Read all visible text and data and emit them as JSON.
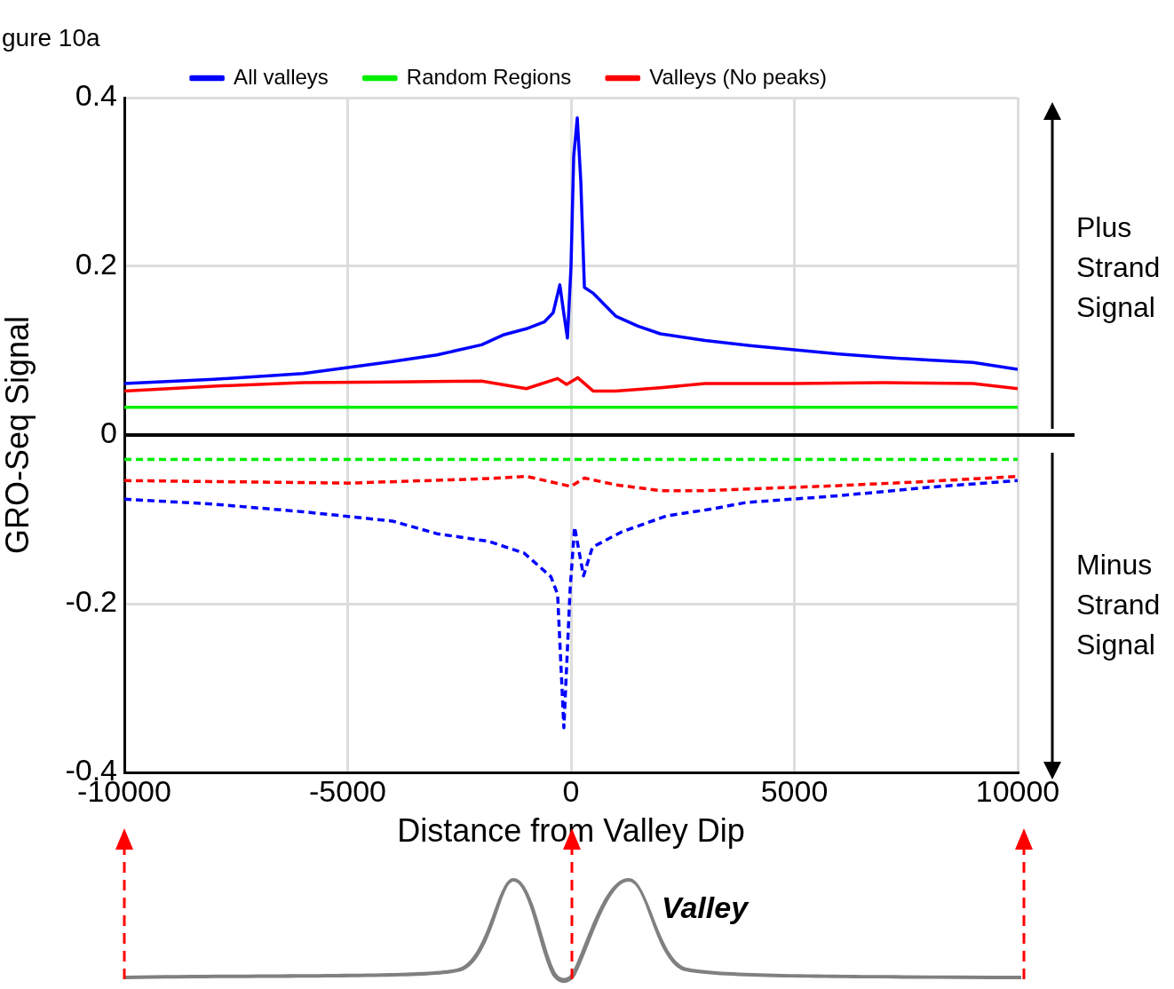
{
  "chart_data": {
    "type": "line",
    "xlabel": "Distance from Valley Dip",
    "ylabel": "GRO-Seq Signal",
    "xlim": [
      -10000,
      10000
    ],
    "xticks": [
      -10000,
      -5000,
      0,
      5000,
      10000
    ],
    "ylim": [
      -0.4,
      0.4
    ],
    "yticks": [
      -0.4,
      -0.2,
      0,
      0.2,
      0.4
    ],
    "grid": true,
    "legend": "top",
    "marker": "none",
    "ref_lines": [
      {
        "axis": "y",
        "value": 0,
        "color": "#000000"
      }
    ],
    "annotations": [
      "gure 10a",
      "Plus Strand Signal",
      "Minus Strand Signal",
      "Valley"
    ],
    "series": [
      {
        "name": "All valleys",
        "color": "#0000ff",
        "line_style": "solid",
        "x": [
          -10000,
          -8000,
          -6000,
          -4000,
          -3000,
          -2000,
          -1500,
          -1000,
          -600,
          -400,
          -250,
          -150,
          -80,
          0,
          60,
          140,
          220,
          300,
          500,
          1000,
          1500,
          2000,
          3000,
          4000,
          5000,
          6000,
          7000,
          8000,
          9000,
          10000
        ],
        "values": [
          0.061,
          0.066,
          0.073,
          0.087,
          0.095,
          0.107,
          0.119,
          0.126,
          0.134,
          0.145,
          0.178,
          0.14,
          0.115,
          0.2,
          0.33,
          0.376,
          0.3,
          0.175,
          0.168,
          0.141,
          0.129,
          0.12,
          0.112,
          0.106,
          0.101,
          0.096,
          0.092,
          0.089,
          0.086,
          0.078
        ]
      },
      {
        "name": "Random Regions",
        "color": "#00ee00",
        "line_style": "solid",
        "x": [
          -10000,
          -5000,
          0,
          5000,
          10000
        ],
        "values": [
          0.033,
          0.033,
          0.033,
          0.033,
          0.033
        ]
      },
      {
        "name": "Valleys (No peaks)",
        "color": "#ff0000",
        "line_style": "solid",
        "x": [
          -10000,
          -8000,
          -6000,
          -4000,
          -2000,
          -1000,
          -300,
          -100,
          150,
          500,
          1000,
          2000,
          3000,
          5000,
          7000,
          9000,
          10000
        ],
        "values": [
          0.052,
          0.058,
          0.062,
          0.063,
          0.064,
          0.055,
          0.067,
          0.06,
          0.068,
          0.052,
          0.052,
          0.056,
          0.061,
          0.061,
          0.062,
          0.061,
          0.055
        ]
      },
      {
        "color": "#0000ff",
        "line_style": "dashed",
        "x": [
          -10000,
          -8000,
          -6000,
          -4000,
          -3000,
          -1850,
          -1050,
          -450,
          -300,
          -160,
          -20,
          80,
          280,
          480,
          1130,
          2130,
          3120,
          3920,
          6000,
          8000,
          10000
        ],
        "values": [
          -0.076,
          -0.082,
          -0.091,
          -0.102,
          -0.117,
          -0.126,
          -0.14,
          -0.168,
          -0.189,
          -0.347,
          -0.183,
          -0.109,
          -0.167,
          -0.133,
          -0.115,
          -0.096,
          -0.088,
          -0.08,
          -0.072,
          -0.062,
          -0.054
        ]
      },
      {
        "color": "#00ee00",
        "line_style": "dashed",
        "x": [
          -10000,
          -5000,
          0,
          5000,
          10000
        ],
        "values": [
          -0.029,
          -0.029,
          -0.029,
          -0.029,
          -0.029
        ]
      },
      {
        "color": "#ff0000",
        "line_style": "dashed",
        "x": [
          -10000,
          -5000,
          -2000,
          -1000,
          0,
          300,
          1000,
          2000,
          3000,
          4000,
          6000,
          8000,
          10000
        ],
        "values": [
          -0.054,
          -0.057,
          -0.052,
          -0.049,
          -0.061,
          -0.051,
          -0.059,
          -0.066,
          -0.066,
          -0.064,
          -0.06,
          -0.055,
          -0.049
        ]
      }
    ]
  }
}
